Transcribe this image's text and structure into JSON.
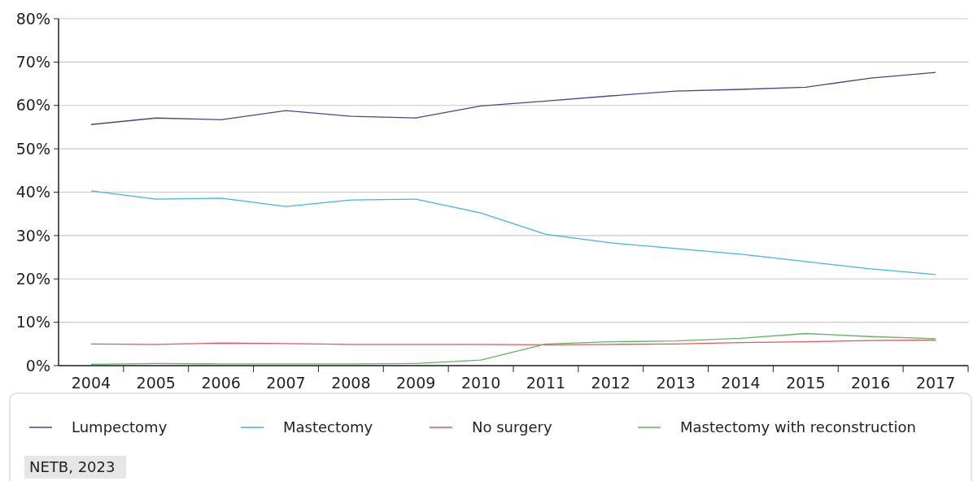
{
  "chart_data": {
    "type": "line",
    "categories": [
      "2004",
      "2005",
      "2006",
      "2007",
      "2008",
      "2009",
      "2010",
      "2011",
      "2012",
      "2013",
      "2014",
      "2015",
      "2016",
      "2017"
    ],
    "series": [
      {
        "name": "Lumpectomy",
        "color": "#3f4a8c",
        "values": [
          55.6,
          57.1,
          56.7,
          58.8,
          57.5,
          57.1,
          59.9,
          61.0,
          62.2,
          63.3,
          63.7,
          64.2,
          66.3,
          67.6
        ]
      },
      {
        "name": "Mastectomy",
        "color": "#3db5ee",
        "values": [
          40.3,
          38.4,
          38.6,
          36.7,
          38.2,
          38.4,
          35.2,
          30.3,
          28.3,
          27.0,
          25.7,
          24.0,
          22.3,
          21.0
        ]
      },
      {
        "name": "No surgery",
        "color": "#e8545f",
        "values": [
          5.0,
          4.9,
          5.2,
          5.1,
          4.9,
          4.9,
          4.9,
          4.8,
          4.9,
          5.0,
          5.3,
          5.5,
          5.8,
          5.9
        ]
      },
      {
        "name": "Mastectomy with reconstruction",
        "color": "#5bb85c",
        "values": [
          0.3,
          0.5,
          0.4,
          0.4,
          0.4,
          0.5,
          1.3,
          5.0,
          5.5,
          5.7,
          6.3,
          7.4,
          6.7,
          6.2
        ]
      }
    ],
    "ylim": [
      0,
      80
    ],
    "yticks": [
      {
        "value": 0,
        "label": "0%"
      },
      {
        "value": 10,
        "label": "10%"
      },
      {
        "value": 20,
        "label": "20%"
      },
      {
        "value": 30,
        "label": "30%"
      },
      {
        "value": 40,
        "label": "40%"
      },
      {
        "value": 50,
        "label": "50%"
      },
      {
        "value": 60,
        "label": "60%"
      },
      {
        "value": 70,
        "label": "70%"
      },
      {
        "value": 80,
        "label": "80%"
      }
    ],
    "grid": "y",
    "legend": "bottom",
    "marker": "none",
    "line_style": "solid",
    "annotations": [
      "NETB, 2023"
    ]
  }
}
